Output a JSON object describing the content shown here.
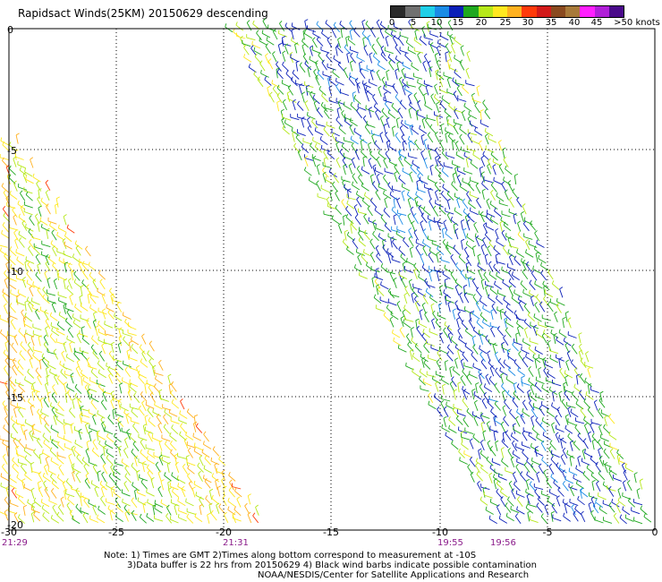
{
  "title": "Rapidsact Winds(25KM) 20150629 descending",
  "legend": {
    "labels": [
      "0",
      "5",
      "10",
      "15",
      "20",
      "25",
      "30",
      "35",
      "40",
      "45",
      ">50 knots"
    ],
    "colors": [
      "#2a2a2a",
      "#707070",
      "#1fcfe8",
      "#1a8be6",
      "#0a1fb8",
      "#1fa81f",
      "#b6e81a",
      "#ffe81f",
      "#ffb11f",
      "#ff3a0a",
      "#d21a1a",
      "#8a4a1f",
      "#a87a3a",
      "#ff1fff",
      "#b01fd8",
      "#4a0a8a"
    ]
  },
  "axes": {
    "x_ticks": [
      "-30",
      "-25",
      "-20",
      "-15",
      "-10",
      "-5",
      "0"
    ],
    "y_ticks": [
      "0",
      "-5",
      "-10",
      "-15",
      "-20"
    ]
  },
  "times": [
    "21:29",
    "21:31",
    "19:55",
    "19:56"
  ],
  "note": {
    "line1": "Note: 1) Times are GMT 2)Times along bottom correspond to measurement at -10S",
    "line2": "3)Data buffer is 22 hrs from 20150629 4) Black wind barbs indicate possible contamination",
    "line3": "NOAA/NESDIS/Center for Satellite Applications and Research"
  }
}
